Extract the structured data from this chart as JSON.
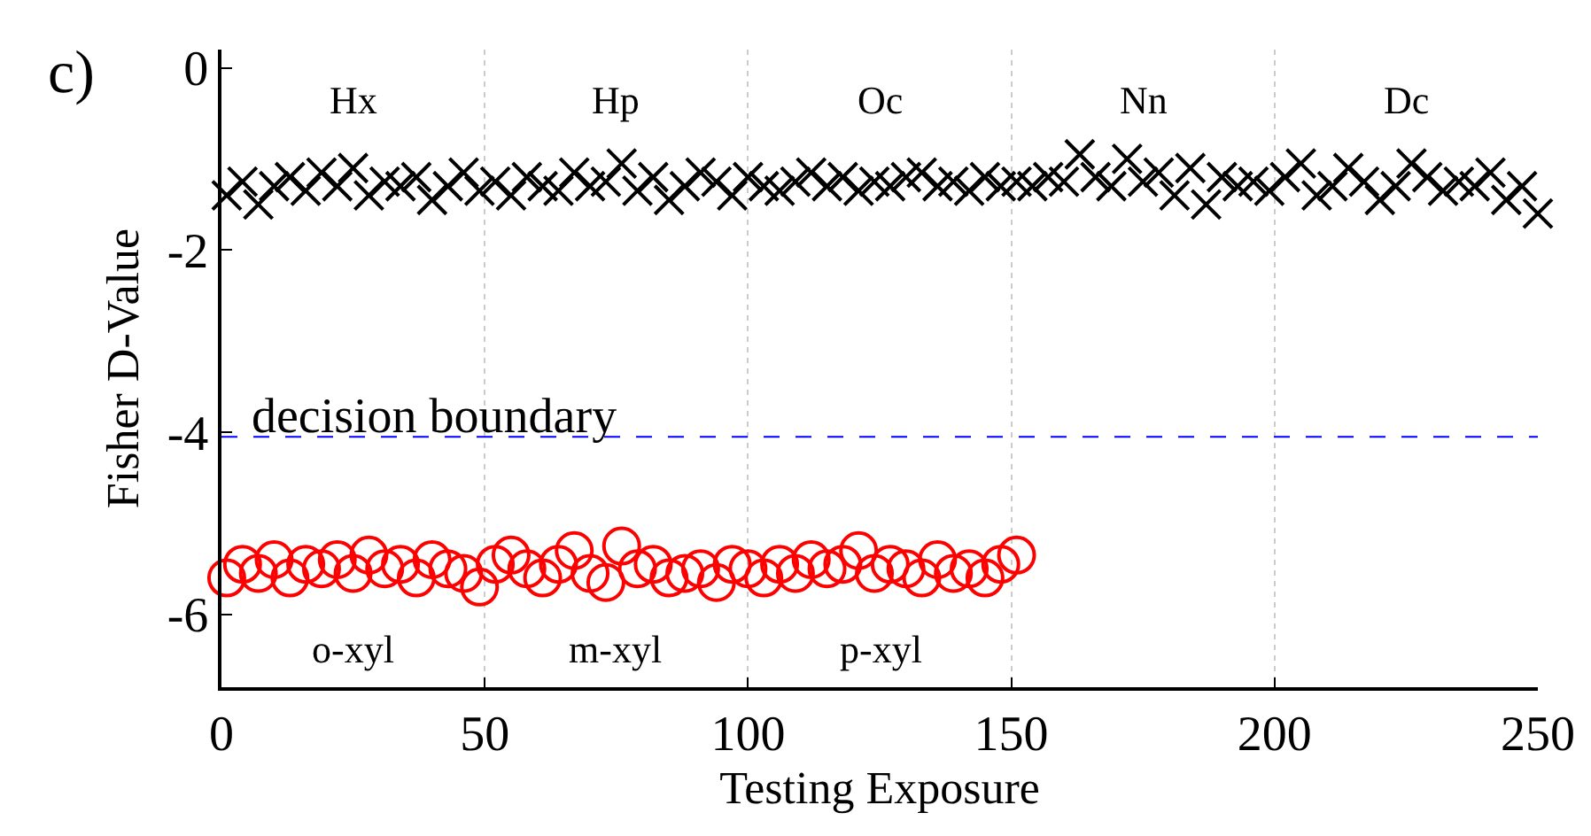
{
  "chart_data": {
    "type": "scatter",
    "xlabel": "Testing Exposure",
    "ylabel": "Fisher D-Value",
    "xlim": [
      0,
      250
    ],
    "xticks": [
      0,
      50,
      100,
      150,
      200,
      250
    ],
    "ylim": [
      -6.8,
      0.2
    ],
    "yticks": [
      0,
      -2,
      -4,
      -6
    ],
    "grid": "x",
    "series": [
      {
        "color": "#000000",
        "marker": "cross",
        "x": [
          1,
          4,
          7,
          10,
          13,
          16,
          19,
          22,
          25,
          28,
          31,
          34,
          37,
          40,
          43,
          46,
          49,
          52,
          55,
          58,
          61,
          64,
          67,
          70,
          73,
          76,
          79,
          82,
          85,
          88,
          91,
          94,
          97,
          100,
          103,
          106,
          109,
          112,
          115,
          118,
          121,
          124,
          127,
          130,
          133,
          136,
          139,
          142,
          145,
          148,
          151,
          154,
          157,
          160,
          163,
          166,
          169,
          172,
          175,
          178,
          181,
          184,
          187,
          190,
          193,
          196,
          199,
          202,
          205,
          208,
          211,
          214,
          217,
          220,
          223,
          226,
          229,
          232,
          235,
          238,
          241,
          244,
          247,
          250
        ],
        "values": [
          -1.4,
          -1.25,
          -1.5,
          -1.3,
          -1.2,
          -1.35,
          -1.15,
          -1.3,
          -1.1,
          -1.4,
          -1.25,
          -1.3,
          -1.2,
          -1.45,
          -1.3,
          -1.15,
          -1.35,
          -1.25,
          -1.4,
          -1.2,
          -1.3,
          -1.35,
          -1.15,
          -1.3,
          -1.25,
          -1.05,
          -1.35,
          -1.2,
          -1.45,
          -1.3,
          -1.15,
          -1.25,
          -1.4,
          -1.2,
          -1.3,
          -1.35,
          -1.25,
          -1.15,
          -1.3,
          -1.2,
          -1.35,
          -1.25,
          -1.3,
          -1.2,
          -1.15,
          -1.3,
          -1.25,
          -1.35,
          -1.2,
          -1.3,
          -1.25,
          -1.3,
          -1.2,
          -1.25,
          -0.95,
          -1.2,
          -1.3,
          -1.0,
          -1.25,
          -1.15,
          -1.4,
          -1.1,
          -1.5,
          -1.2,
          -1.3,
          -1.25,
          -1.35,
          -1.2,
          -1.05,
          -1.4,
          -1.3,
          -1.1,
          -1.25,
          -1.45,
          -1.3,
          -1.05,
          -1.2,
          -1.35,
          -1.25,
          -1.3,
          -1.15,
          -1.45,
          -1.3,
          -1.6
        ]
      },
      {
        "color": "#ff0000",
        "marker": "circle",
        "x": [
          1,
          4,
          7,
          10,
          13,
          16,
          19,
          22,
          25,
          28,
          31,
          34,
          37,
          40,
          43,
          46,
          49,
          52,
          55,
          58,
          61,
          64,
          67,
          70,
          73,
          76,
          79,
          82,
          85,
          88,
          91,
          94,
          97,
          100,
          103,
          106,
          109,
          112,
          115,
          118,
          121,
          124,
          127,
          130,
          133,
          136,
          139,
          142,
          145,
          148,
          151
        ],
        "values": [
          -5.6,
          -5.45,
          -5.55,
          -5.4,
          -5.6,
          -5.45,
          -5.5,
          -5.4,
          -5.55,
          -5.35,
          -5.5,
          -5.45,
          -5.6,
          -5.4,
          -5.5,
          -5.55,
          -5.7,
          -5.45,
          -5.35,
          -5.5,
          -5.6,
          -5.45,
          -5.3,
          -5.55,
          -5.65,
          -5.25,
          -5.5,
          -5.45,
          -5.6,
          -5.55,
          -5.5,
          -5.65,
          -5.45,
          -5.5,
          -5.6,
          -5.45,
          -5.55,
          -5.4,
          -5.5,
          -5.45,
          -5.3,
          -5.55,
          -5.45,
          -5.5,
          -5.6,
          -5.4,
          -5.55,
          -5.5,
          -5.6,
          -5.45,
          -5.35
        ]
      }
    ],
    "ref_lines": [
      {
        "axis": "y",
        "value": -4.05,
        "label": "decision boundary",
        "color": "#0000ff",
        "line_style": "dashed"
      }
    ],
    "annotations": [
      "c)",
      "Hx",
      "Hp",
      "Oc",
      "Nn",
      "Dc",
      "o-xyl",
      "m-xyl",
      "p-xyl"
    ]
  }
}
